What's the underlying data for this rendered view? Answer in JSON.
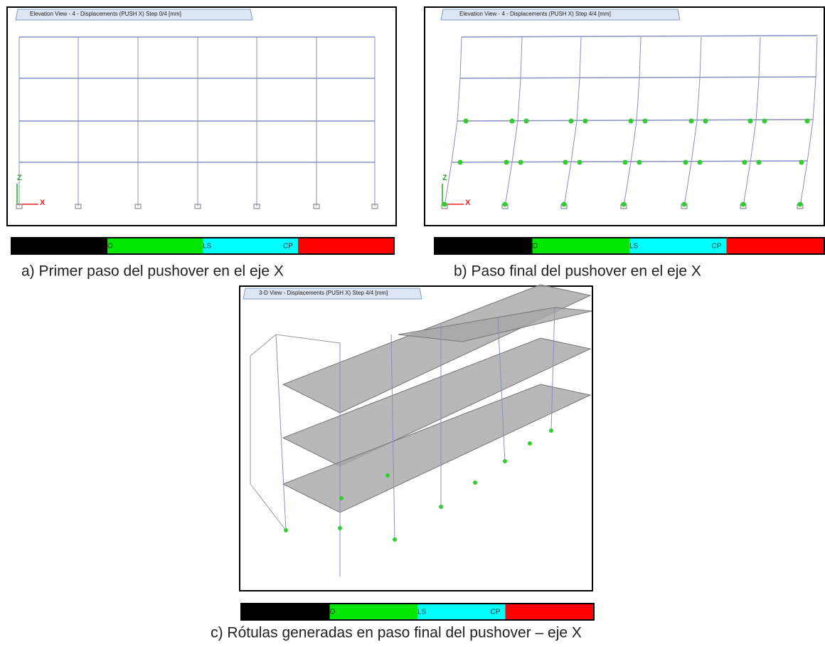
{
  "panels": [
    {
      "tab": "Elevation View - 4  - Displacements (PUSH X)  Step 0/4  [mm]",
      "axis_z": "Z",
      "axis_x": "X",
      "legend": [
        "O",
        "LS",
        "CP"
      ],
      "caption": "a)  Primer paso del pushover en el eje X"
    },
    {
      "tab": "Elevation View - 4  - Displacements (PUSH X)  Step 4/4  [mm]",
      "axis_z": "Z",
      "axis_x": "X",
      "legend": [
        "O",
        "LS",
        "CP"
      ],
      "caption": "b)  Paso final del pushover en el eje X"
    },
    {
      "tab": "3-D View  - Displacements (PUSH X)  Step 4/4  [mm]",
      "legend": [
        "O",
        "LS",
        "CP"
      ],
      "caption": "c)  Rótulas generadas en paso final del pushover – eje X"
    }
  ]
}
